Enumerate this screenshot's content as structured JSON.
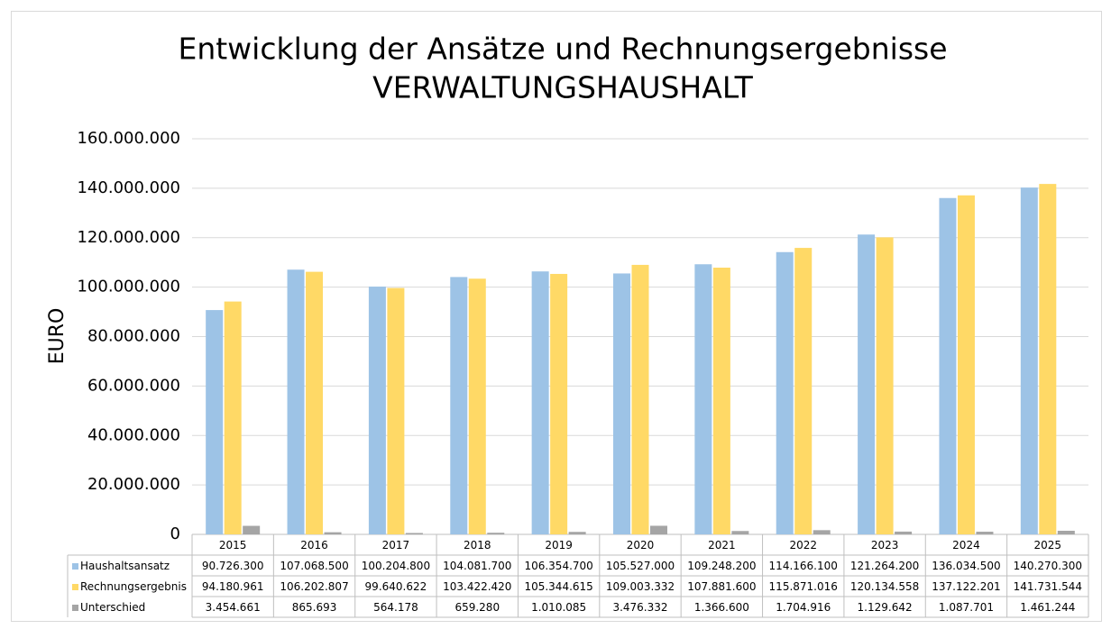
{
  "chart_data": {
    "type": "bar",
    "title": "Entwicklung der Ansätze und Rechnungsergebnisse",
    "subtitle": "VERWALTUNGSHAUSHALT",
    "y_label": "EURO",
    "categories": [
      "2015",
      "2016",
      "2017",
      "2018",
      "2019",
      "2020",
      "2021",
      "2022",
      "2023",
      "2024",
      "2025"
    ],
    "series": [
      {
        "name": "Haushaltsansatz",
        "color": "#9dc3e6",
        "values": [
          90726300,
          107068500,
          100204800,
          104081700,
          106354700,
          105527000,
          109248200,
          114166100,
          121264200,
          136034500,
          140270300
        ],
        "value_labels": [
          "90.726.300",
          "107.068.500",
          "100.204.800",
          "104.081.700",
          "106.354.700",
          "105.527.000",
          "109.248.200",
          "114.166.100",
          "121.264.200",
          "136.034.500",
          "140.270.300"
        ]
      },
      {
        "name": "Rechnungsergebnis",
        "color": "#ffd966",
        "values": [
          94180961,
          106202807,
          99640622,
          103422420,
          105344615,
          109003332,
          107881600,
          115871016,
          120134558,
          137122201,
          141731544
        ],
        "value_labels": [
          "94.180.961",
          "106.202.807",
          "99.640.622",
          "103.422.420",
          "105.344.615",
          "109.003.332",
          "107.881.600",
          "115.871.016",
          "120.134.558",
          "137.122.201",
          "141.731.544"
        ]
      },
      {
        "name": "Unterschied",
        "color": "#a5a5a5",
        "values": [
          3454661,
          865693,
          564178,
          659280,
          1010085,
          3476332,
          1366600,
          1704916,
          1129642,
          1087701,
          1461244
        ],
        "value_labels": [
          "3.454.661",
          "865.693",
          "564.178",
          "659.280",
          "1.010.085",
          "3.476.332",
          "1.366.600",
          "1.704.916",
          "1.129.642",
          "1.087.701",
          "1.461.244"
        ]
      }
    ],
    "ylim": [
      0,
      160000000
    ],
    "yticks": [
      0,
      {
        "value": 20000000,
        "label": "20.000.000"
      },
      {
        "value": 40000000,
        "label": "40.000.000"
      },
      {
        "value": 60000000,
        "label": "60.000.000"
      },
      {
        "value": 80000000,
        "label": "80.000.000"
      },
      {
        "value": 100000000,
        "label": "100.000.000"
      },
      {
        "value": 120000000,
        "label": "120.000.000"
      },
      {
        "value": 140000000,
        "label": "140.000.000"
      },
      {
        "value": 160000000,
        "label": "160.000.000"
      }
    ],
    "grid": true,
    "legend": "table"
  }
}
